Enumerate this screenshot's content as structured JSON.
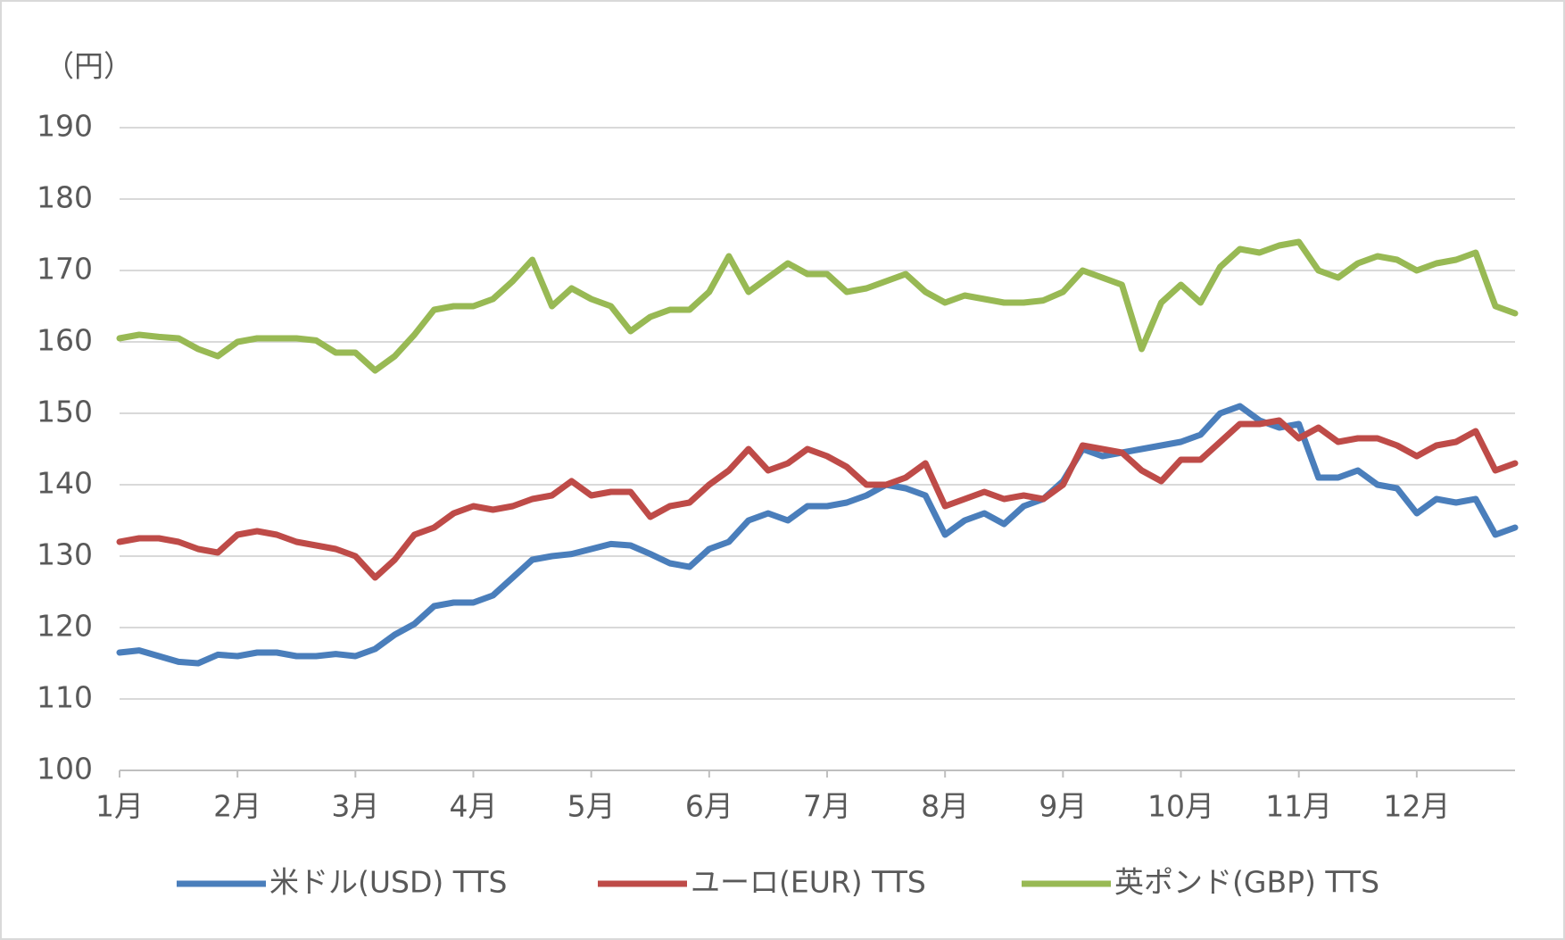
{
  "chart_data": {
    "type": "line",
    "y_label": "（円）",
    "categories": [
      "1月",
      null,
      null,
      null,
      null,
      null,
      "2月",
      null,
      null,
      null,
      null,
      null,
      "3月",
      null,
      null,
      null,
      null,
      null,
      "4月",
      null,
      null,
      null,
      null,
      null,
      "5月",
      null,
      null,
      null,
      null,
      null,
      "6月",
      null,
      null,
      null,
      null,
      null,
      "7月",
      null,
      null,
      null,
      null,
      null,
      "8月",
      null,
      null,
      null,
      null,
      null,
      "9月",
      null,
      null,
      null,
      null,
      null,
      "10月",
      null,
      null,
      null,
      null,
      null,
      "11月",
      null,
      null,
      null,
      null,
      null,
      "12月",
      null,
      null,
      null,
      null,
      null
    ],
    "series": [
      {
        "name": "米ドル(USD) TTS",
        "color": "#4a7ebb",
        "values": [
          116.5,
          116.8,
          116,
          115.2,
          115,
          116.2,
          116,
          116.5,
          116.5,
          116,
          116,
          116.3,
          116,
          117,
          119,
          120.5,
          123,
          123.5,
          123.5,
          124.5,
          127,
          129.5,
          130,
          130.3,
          131,
          131.7,
          131.5,
          130.3,
          129,
          128.5,
          131,
          132,
          135,
          136,
          135,
          137,
          137,
          137.5,
          138.5,
          140,
          139.5,
          138.5,
          133,
          135,
          136,
          134.5,
          137,
          138,
          140.5,
          145,
          144,
          144.5,
          145,
          145.5,
          146,
          147,
          150,
          151,
          149,
          148,
          148.5,
          141,
          141,
          142,
          140,
          139.5,
          136,
          138,
          137.5,
          138,
          133,
          134
        ]
      },
      {
        "name": "ユーロ(EUR) TTS",
        "color": "#be4b48",
        "values": [
          132,
          132.5,
          132.5,
          132,
          131,
          130.5,
          133,
          133.5,
          133,
          132,
          131.5,
          131,
          130,
          127,
          129.5,
          133,
          134,
          136,
          137,
          136.5,
          137,
          138,
          138.5,
          140.5,
          138.5,
          139,
          139,
          135.5,
          137,
          137.5,
          140,
          142,
          145,
          142,
          143,
          145,
          144,
          142.5,
          140,
          140,
          141,
          143,
          137,
          138,
          139,
          138,
          138.5,
          138,
          140,
          145.5,
          145,
          144.5,
          142,
          140.5,
          143.5,
          143.5,
          146,
          148.5,
          148.5,
          149,
          146.5,
          148,
          146,
          146.5,
          146.5,
          145.5,
          144,
          145.5,
          146,
          147.5,
          142,
          143
        ]
      },
      {
        "name": "英ポンド(GBP) TTS",
        "color": "#98b954",
        "values": [
          160.5,
          161,
          160.7,
          160.5,
          159,
          158,
          160,
          160.5,
          160.5,
          160.5,
          160.2,
          158.5,
          158.5,
          156,
          158,
          161,
          164.5,
          165,
          165,
          166,
          168.5,
          171.5,
          165,
          167.5,
          166,
          165,
          161.5,
          163.5,
          164.5,
          164.5,
          167,
          172,
          167,
          169,
          171,
          169.5,
          169.5,
          167,
          167.5,
          168.5,
          169.5,
          167,
          165.5,
          166.5,
          166,
          165.5,
          165.5,
          165.8,
          167,
          170,
          169,
          168,
          159,
          165.5,
          168,
          165.5,
          170.5,
          173,
          172.5,
          173.5,
          174,
          170,
          169,
          171,
          172,
          171.5,
          170,
          171,
          171.5,
          172.5,
          165,
          164
        ]
      }
    ],
    "ylim": [
      100,
      190
    ],
    "yticks": [
      100,
      110,
      120,
      130,
      140,
      150,
      160,
      170,
      180,
      190
    ],
    "grid": true,
    "legend": "bottom"
  }
}
